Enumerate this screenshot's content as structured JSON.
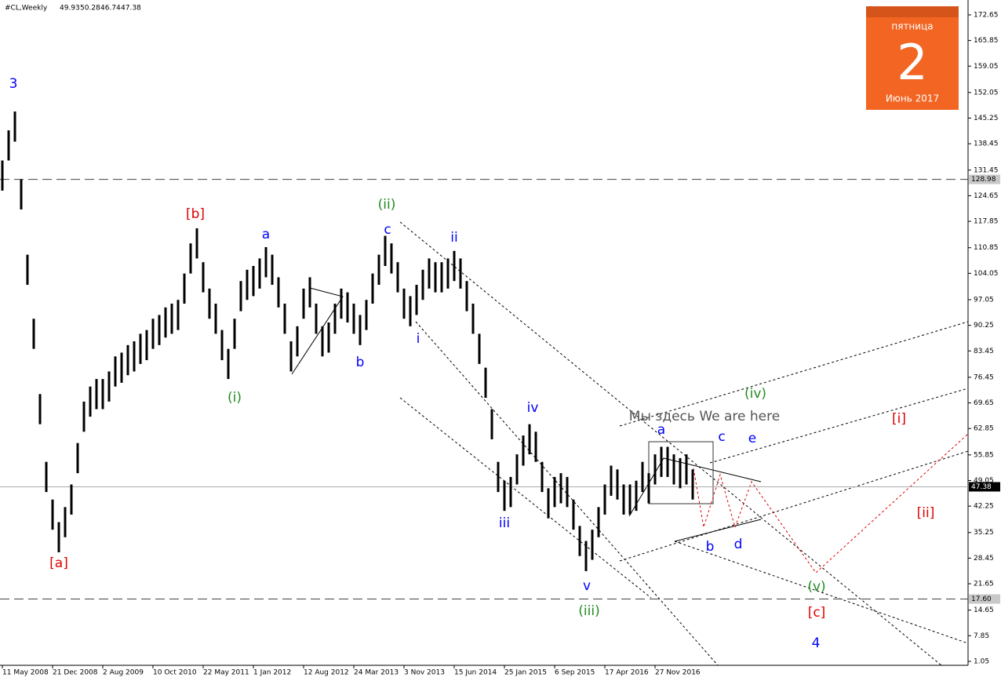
{
  "chart_data": {
    "type": "range-bar",
    "title": "#CL,Weekly",
    "last_bar": {
      "open": 49.93,
      "high": 50.28,
      "low": 46.74,
      "close": 47.38
    },
    "color": "#000000",
    "x": [
      0,
      4,
      8,
      12,
      16,
      20,
      24,
      28,
      32,
      36,
      40,
      44,
      48,
      52,
      56,
      60,
      64,
      68,
      72,
      76,
      80,
      84,
      88,
      92,
      96,
      100,
      104,
      108,
      112,
      116,
      120,
      124,
      128,
      132,
      136,
      140,
      144,
      148,
      152,
      156,
      160,
      164,
      168,
      172,
      176,
      180,
      184,
      188,
      192,
      196,
      200,
      204,
      208,
      212,
      216,
      220,
      224,
      228,
      232,
      236,
      240,
      244,
      248,
      252,
      256,
      260,
      264,
      268,
      272,
      276,
      280,
      284,
      288,
      292,
      296,
      300,
      304,
      308,
      312,
      316,
      320,
      324,
      328,
      332,
      336,
      340,
      344,
      348,
      352,
      356,
      360,
      364,
      368,
      372,
      376,
      380,
      384,
      388,
      392,
      396,
      400,
      404,
      408,
      412,
      416,
      420,
      424,
      428,
      432,
      436,
      440
    ],
    "high": [
      134,
      142,
      147,
      129,
      109,
      92,
      72,
      54,
      44,
      38,
      42,
      48,
      59,
      70,
      74,
      76,
      76,
      78,
      82,
      83,
      85,
      86,
      88,
      89,
      92,
      93,
      95,
      96,
      97,
      104,
      112,
      116,
      107,
      100,
      96,
      89,
      84,
      92,
      102,
      105,
      106,
      108,
      111,
      109,
      103,
      96,
      86,
      90,
      100,
      103,
      96,
      90,
      91,
      96,
      100,
      99,
      96,
      93,
      97,
      104,
      109,
      114,
      112,
      107,
      100,
      98,
      101,
      105,
      108,
      107,
      107,
      108,
      110,
      108,
      102,
      96,
      88,
      79,
      68,
      54,
      49,
      50,
      56,
      61,
      64,
      62,
      54,
      47,
      50,
      51,
      50,
      44,
      37,
      33,
      36,
      42,
      48,
      53,
      52,
      48,
      48,
      49,
      54,
      51,
      56,
      58,
      58,
      56,
      55,
      56,
      52
    ],
    "low": [
      126,
      134,
      139,
      121,
      101,
      84,
      64,
      46,
      36,
      30,
      34,
      40,
      51,
      62,
      66,
      68,
      68,
      70,
      74,
      75,
      77,
      78,
      80,
      81,
      84,
      85,
      87,
      88,
      89,
      96,
      104,
      108,
      99,
      92,
      88,
      81,
      76,
      84,
      94,
      97,
      98,
      100,
      103,
      101,
      95,
      88,
      78,
      82,
      92,
      95,
      88,
      82,
      83,
      88,
      92,
      91,
      88,
      85,
      89,
      96,
      101,
      106,
      104,
      99,
      92,
      90,
      93,
      97,
      100,
      99,
      99,
      100,
      102,
      100,
      94,
      88,
      80,
      71,
      60,
      46,
      41,
      42,
      48,
      53,
      56,
      54,
      46,
      39,
      42,
      43,
      42,
      36,
      29,
      25,
      28,
      34,
      40,
      45,
      44,
      40,
      40,
      41,
      46,
      43,
      48,
      50,
      50,
      48,
      47,
      48,
      44
    ],
    "xlim": [
      0,
      615.5
    ],
    "xticks": [
      {
        "value": 0,
        "label": "11 May 2008"
      },
      {
        "value": 32,
        "label": "21 Dec 2008"
      },
      {
        "value": 64,
        "label": "2 Aug 2009"
      },
      {
        "value": 96,
        "label": "10 Oct 2010"
      },
      {
        "value": 128,
        "label": "22 May 2011"
      },
      {
        "value": 160,
        "label": "1 Jan 2012"
      },
      {
        "value": 192,
        "label": "12 Aug 2012"
      },
      {
        "value": 224,
        "label": "24 Mar 2013"
      },
      {
        "value": 256,
        "label": "3 Nov 2013"
      },
      {
        "value": 288,
        "label": "15 Jun 2014"
      },
      {
        "value": 320,
        "label": "25 Jan 2015"
      },
      {
        "value": 352,
        "label": "6 Sep 2015"
      },
      {
        "value": 384,
        "label": "17 Apr 2016"
      },
      {
        "value": 416,
        "label": "27 Nov 2016"
      }
    ],
    "ylim": [
      0,
      176.6
    ],
    "yticks": [
      172.65,
      165.85,
      159.05,
      152.05,
      145.25,
      138.45,
      131.45,
      124.65,
      117.85,
      110.85,
      104.05,
      97.05,
      90.25,
      83.45,
      76.45,
      69.65,
      62.85,
      55.85,
      49.05,
      42.25,
      35.25,
      28.45,
      21.65,
      14.65,
      7.85,
      1.05
    ],
    "levels": [
      {
        "value": 128.98,
        "style": "dashed"
      },
      {
        "value": 47.38,
        "style": "solid"
      },
      {
        "value": 17.6,
        "label": "17.60",
        "style": "dashed"
      }
    ],
    "annotations": [
      {
        "text": "3",
        "color": "#0000ff"
      },
      {
        "text": "[a]",
        "color": "#e00000"
      },
      {
        "text": "[b]",
        "color": "#e00000"
      },
      {
        "text": "(i)",
        "color": "#228b22"
      },
      {
        "text": "a",
        "color": "#0000ff"
      },
      {
        "text": "b",
        "color": "#0000ff"
      },
      {
        "text": "(ii)",
        "color": "#228b22"
      },
      {
        "text": "c",
        "color": "#0000ff"
      },
      {
        "text": "ii",
        "color": "#0000ff"
      },
      {
        "text": "i",
        "color": "#0000ff"
      },
      {
        "text": "iv",
        "color": "#0000ff"
      },
      {
        "text": "iii",
        "color": "#0000ff"
      },
      {
        "text": "v",
        "color": "#0000ff"
      },
      {
        "text": "(iii)",
        "color": "#228b22"
      },
      {
        "text": "Мы здесь We are here",
        "color": "#555555"
      },
      {
        "text": "a",
        "color": "#0000ff"
      },
      {
        "text": "c",
        "color": "#0000ff"
      },
      {
        "text": "e",
        "color": "#0000ff"
      },
      {
        "text": "(iv)",
        "color": "#228b22"
      },
      {
        "text": "b",
        "color": "#0000ff"
      },
      {
        "text": "d",
        "color": "#0000ff"
      },
      {
        "text": "[i]",
        "color": "#e00000"
      },
      {
        "text": "[ii]",
        "color": "#e00000"
      },
      {
        "text": "(v)",
        "color": "#228b22"
      },
      {
        "text": "[c]",
        "color": "#e00000"
      },
      {
        "text": "4",
        "color": "#0000ff"
      }
    ],
    "calendar": {
      "weekday": "пятница",
      "day": "2",
      "month_year": "Июнь 2017"
    }
  }
}
